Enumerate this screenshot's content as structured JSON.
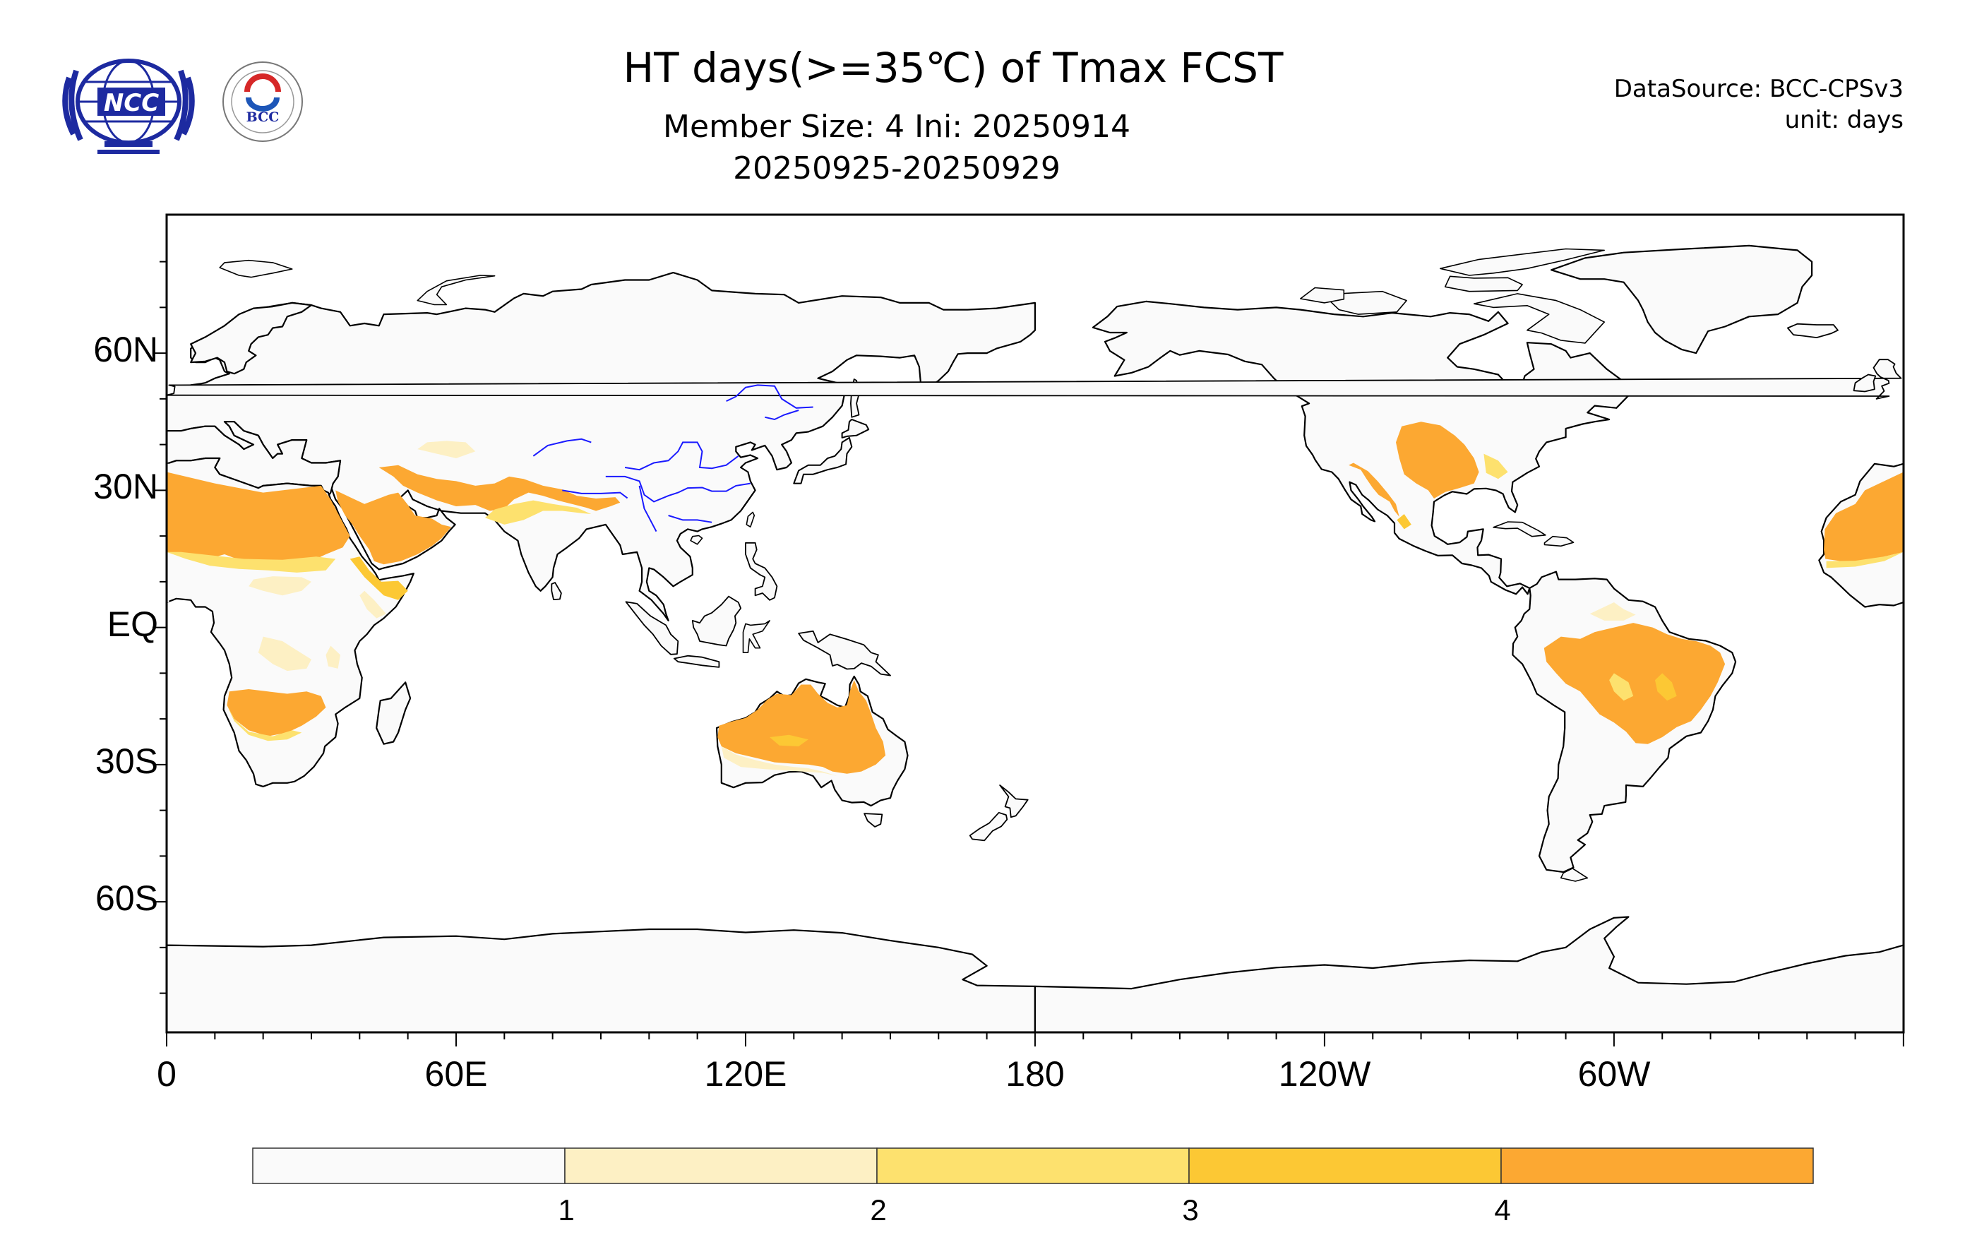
{
  "header": {
    "title": "HT days(>=35℃) of Tmax FCST",
    "subtitle_line1": "Member Size: 4  Ini: 20250914",
    "subtitle_line2": "20250925-20250929",
    "data_source": "DataSource: BCC-CPSv3",
    "unit": "unit: days"
  },
  "logos": {
    "left_logo": "NCC",
    "right_logo": "BCC"
  },
  "map": {
    "projection": "cylindrical equidistant",
    "center_longitude": "180",
    "lat_labels": [
      "60N",
      "30N",
      "EQ",
      "30S",
      "60S"
    ],
    "lon_labels": [
      "0",
      "60E",
      "120E",
      "180",
      "120W",
      "60W"
    ],
    "land_color": "#fafafa",
    "coast_color": "#000000",
    "river_color": "#1a1aff"
  },
  "legend": {
    "tick_labels": [
      "1",
      "2",
      "3",
      "4"
    ],
    "colors": [
      "#fafafa",
      "#fdf0c4",
      "#fde16e",
      "#fcc834",
      "#fca832"
    ]
  },
  "chart_data": {
    "type": "heatmap",
    "title": "HT days(>=35℃) of Tmax FCST",
    "value_unit": "days",
    "levels": [
      1,
      2,
      3,
      4
    ],
    "level_colors": [
      "#fafafa",
      "#fdf0c4",
      "#fde16e",
      "#fcc834",
      "#fca832"
    ],
    "regions_at_or_above_4_days": [
      "Sahara / North Africa",
      "Arabian Peninsula",
      "South Asia (northern India / Pakistan)",
      "Southern Africa",
      "Australia",
      "Brazil",
      "Southern United States",
      "Mexico",
      "West Africa coast"
    ]
  }
}
